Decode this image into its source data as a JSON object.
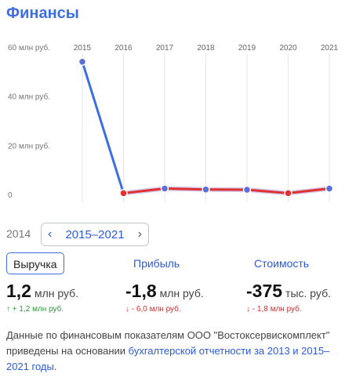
{
  "page": {
    "title": "Финансы"
  },
  "chart_data": {
    "type": "line",
    "x": [
      "2015",
      "2016",
      "2017",
      "2018",
      "2019",
      "2020",
      "2021"
    ],
    "values": [
      54,
      0.5,
      2.4,
      2.0,
      1.9,
      0.5,
      2.4
    ],
    "y_ticks": [
      "60 млн руб.",
      "40 млн руб.",
      "20 млн руб.",
      "0"
    ],
    "y_tick_values": [
      60,
      40,
      20,
      0
    ],
    "ylim": [
      0,
      60
    ],
    "grid": true,
    "colors": {
      "rise": "#3d6fe0",
      "low": "#e03030",
      "dot_fill": "#5b6fd6",
      "dot_low": "#e03030",
      "grid": "#e6e6e6"
    }
  },
  "period": {
    "prev_year": "2014",
    "label": "2015–2021"
  },
  "metrics": [
    {
      "tab": "Выручка",
      "value": "1,2",
      "unit": "млн руб.",
      "delta_arrow": "↑",
      "delta": "+ 1,2 млн руб.",
      "direction": "up"
    },
    {
      "tab": "Прибыль",
      "value": "-1,8",
      "unit": "млн руб.",
      "delta_arrow": "↓",
      "delta": "- 6,0 млн руб.",
      "direction": "down"
    },
    {
      "tab": "Стоимость",
      "value": "-375",
      "unit": "тыс. руб.",
      "delta_arrow": "↓",
      "delta": "- 1,8 млн руб.",
      "direction": "down"
    }
  ],
  "note": {
    "text": "Данные по финансовым показателям ООО \"Востоксервискомплект\" приведены на основании ",
    "link": "бухгалтерской отчетности за 2013 и 2015–2021 годы",
    "end": "."
  },
  "icons": {
    "prev": "chevron-left-icon",
    "next": "chevron-right-icon"
  }
}
